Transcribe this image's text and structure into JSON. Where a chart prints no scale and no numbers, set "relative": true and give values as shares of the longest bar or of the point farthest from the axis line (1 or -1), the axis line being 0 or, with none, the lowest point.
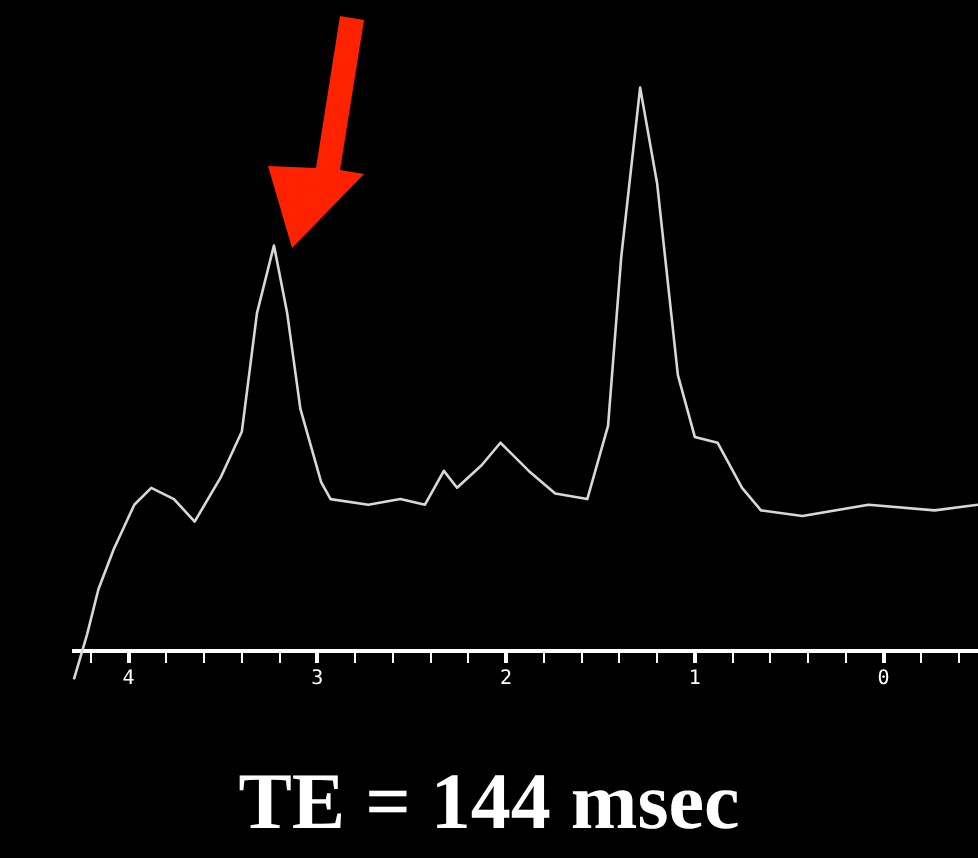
{
  "chart_data": {
    "type": "line",
    "relative": true,
    "annotations": [
      "TE = 144 msec"
    ],
    "x": [
      4.29,
      4.22,
      4.16,
      4.08,
      3.97,
      3.88,
      3.76,
      3.65,
      3.51,
      3.4,
      3.32,
      3.23,
      3.16,
      3.09,
      2.98,
      2.93,
      2.73,
      2.56,
      2.43,
      2.33,
      2.26,
      2.13,
      2.03,
      1.88,
      1.74,
      1.57,
      1.46,
      1.39,
      1.29,
      1.2,
      1.09,
      1.0,
      0.88,
      0.75,
      0.65,
      0.43,
      0.08,
      -0.27,
      -0.5
    ],
    "series": [
      {
        "color": "#d8d8d8",
        "values": [
          -0.05,
          0.03,
          0.11,
          0.18,
          0.26,
          0.29,
          0.27,
          0.23,
          0.31,
          0.39,
          0.6,
          0.72,
          0.6,
          0.43,
          0.3,
          0.27,
          0.26,
          0.27,
          0.26,
          0.32,
          0.29,
          0.33,
          0.37,
          0.32,
          0.28,
          0.27,
          0.4,
          0.7,
          1.0,
          0.83,
          0.49,
          0.38,
          0.37,
          0.29,
          0.25,
          0.24,
          0.26,
          0.25,
          0.26
        ]
      }
    ],
    "xlim": [
      4.3,
      -0.5
    ],
    "xticks": [
      {
        "value": 4.2,
        "label": null
      },
      4,
      {
        "value": 3.8,
        "label": null
      },
      {
        "value": 3.6,
        "label": null
      },
      {
        "value": 3.4,
        "label": null
      },
      {
        "value": 3.2,
        "label": null
      },
      3,
      {
        "value": 2.8,
        "label": null
      },
      {
        "value": 2.6,
        "label": null
      },
      {
        "value": 2.4,
        "label": null
      },
      {
        "value": 2.2,
        "label": null
      },
      2,
      {
        "value": 1.8,
        "label": null
      },
      {
        "value": 1.6,
        "label": null
      },
      {
        "value": 1.4,
        "label": null
      },
      {
        "value": 1.2,
        "label": null
      },
      1,
      {
        "value": 0.8,
        "label": null
      },
      {
        "value": 0.6,
        "label": null
      },
      {
        "value": 0.4,
        "label": null
      },
      {
        "value": 0.2,
        "label": null
      },
      0,
      {
        "value": -0.2,
        "label": null
      },
      {
        "value": -0.4,
        "label": null
      }
    ],
    "grid": false,
    "legend": false,
    "marker": "none",
    "line_style": "solid"
  }
}
